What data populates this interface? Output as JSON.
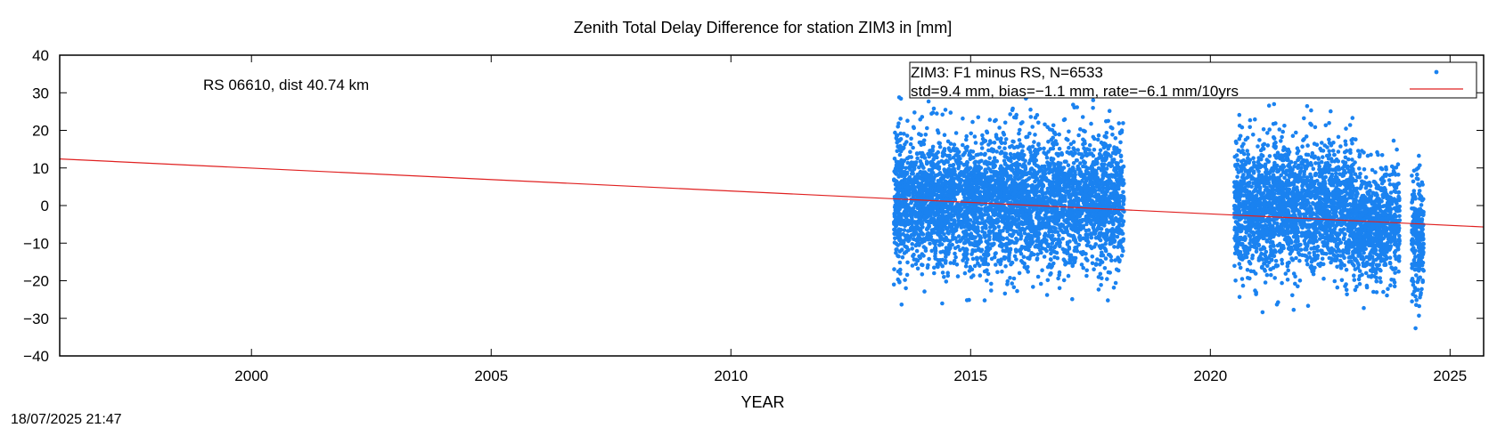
{
  "timestamp": "18/07/2025 21:47",
  "chart_data": {
    "type": "scatter",
    "title": "Zenith Total Delay Difference for station ZIM3 in [mm]",
    "xlabel": "YEAR",
    "ylabel": "",
    "xlim": [
      1996.0,
      2025.7
    ],
    "ylim": [
      -40,
      40
    ],
    "xticks": [
      2000,
      2005,
      2010,
      2015,
      2020,
      2025
    ],
    "yticks": [
      -40,
      -30,
      -20,
      -10,
      0,
      10,
      20,
      30,
      40
    ],
    "annotation": "RS 06610, dist 40.74 km",
    "legend": {
      "position": "top-right",
      "entries": [
        "ZIM3: F1 minus RS, N=6533",
        "std=9.4 mm, bias=−1.1 mm, rate=−6.1 mm/10yrs"
      ]
    },
    "series": [
      {
        "name": "ZIM3: F1 minus RS, N=6533",
        "kind": "scatter",
        "color": "#1a82f0",
        "segments": [
          {
            "x_start": 2013.4,
            "x_end": 2018.2,
            "center": 1.0,
            "std": 8.5
          },
          {
            "x_start": 2020.5,
            "x_end": 2023.0,
            "center": -0.5,
            "std": 8.5
          },
          {
            "x_start": 2023.0,
            "x_end": 2023.95,
            "center": -5.0,
            "std": 7.0
          },
          {
            "x_start": 2024.2,
            "x_end": 2024.45,
            "center": -8.0,
            "std": 8.0
          }
        ]
      },
      {
        "name": "std=9.4 mm, bias=−1.1 mm, rate=−6.1 mm/10yrs",
        "kind": "line",
        "color": "#e02020",
        "x": [
          1996.0,
          2025.7
        ],
        "y": [
          12.4,
          -5.7
        ]
      }
    ]
  }
}
